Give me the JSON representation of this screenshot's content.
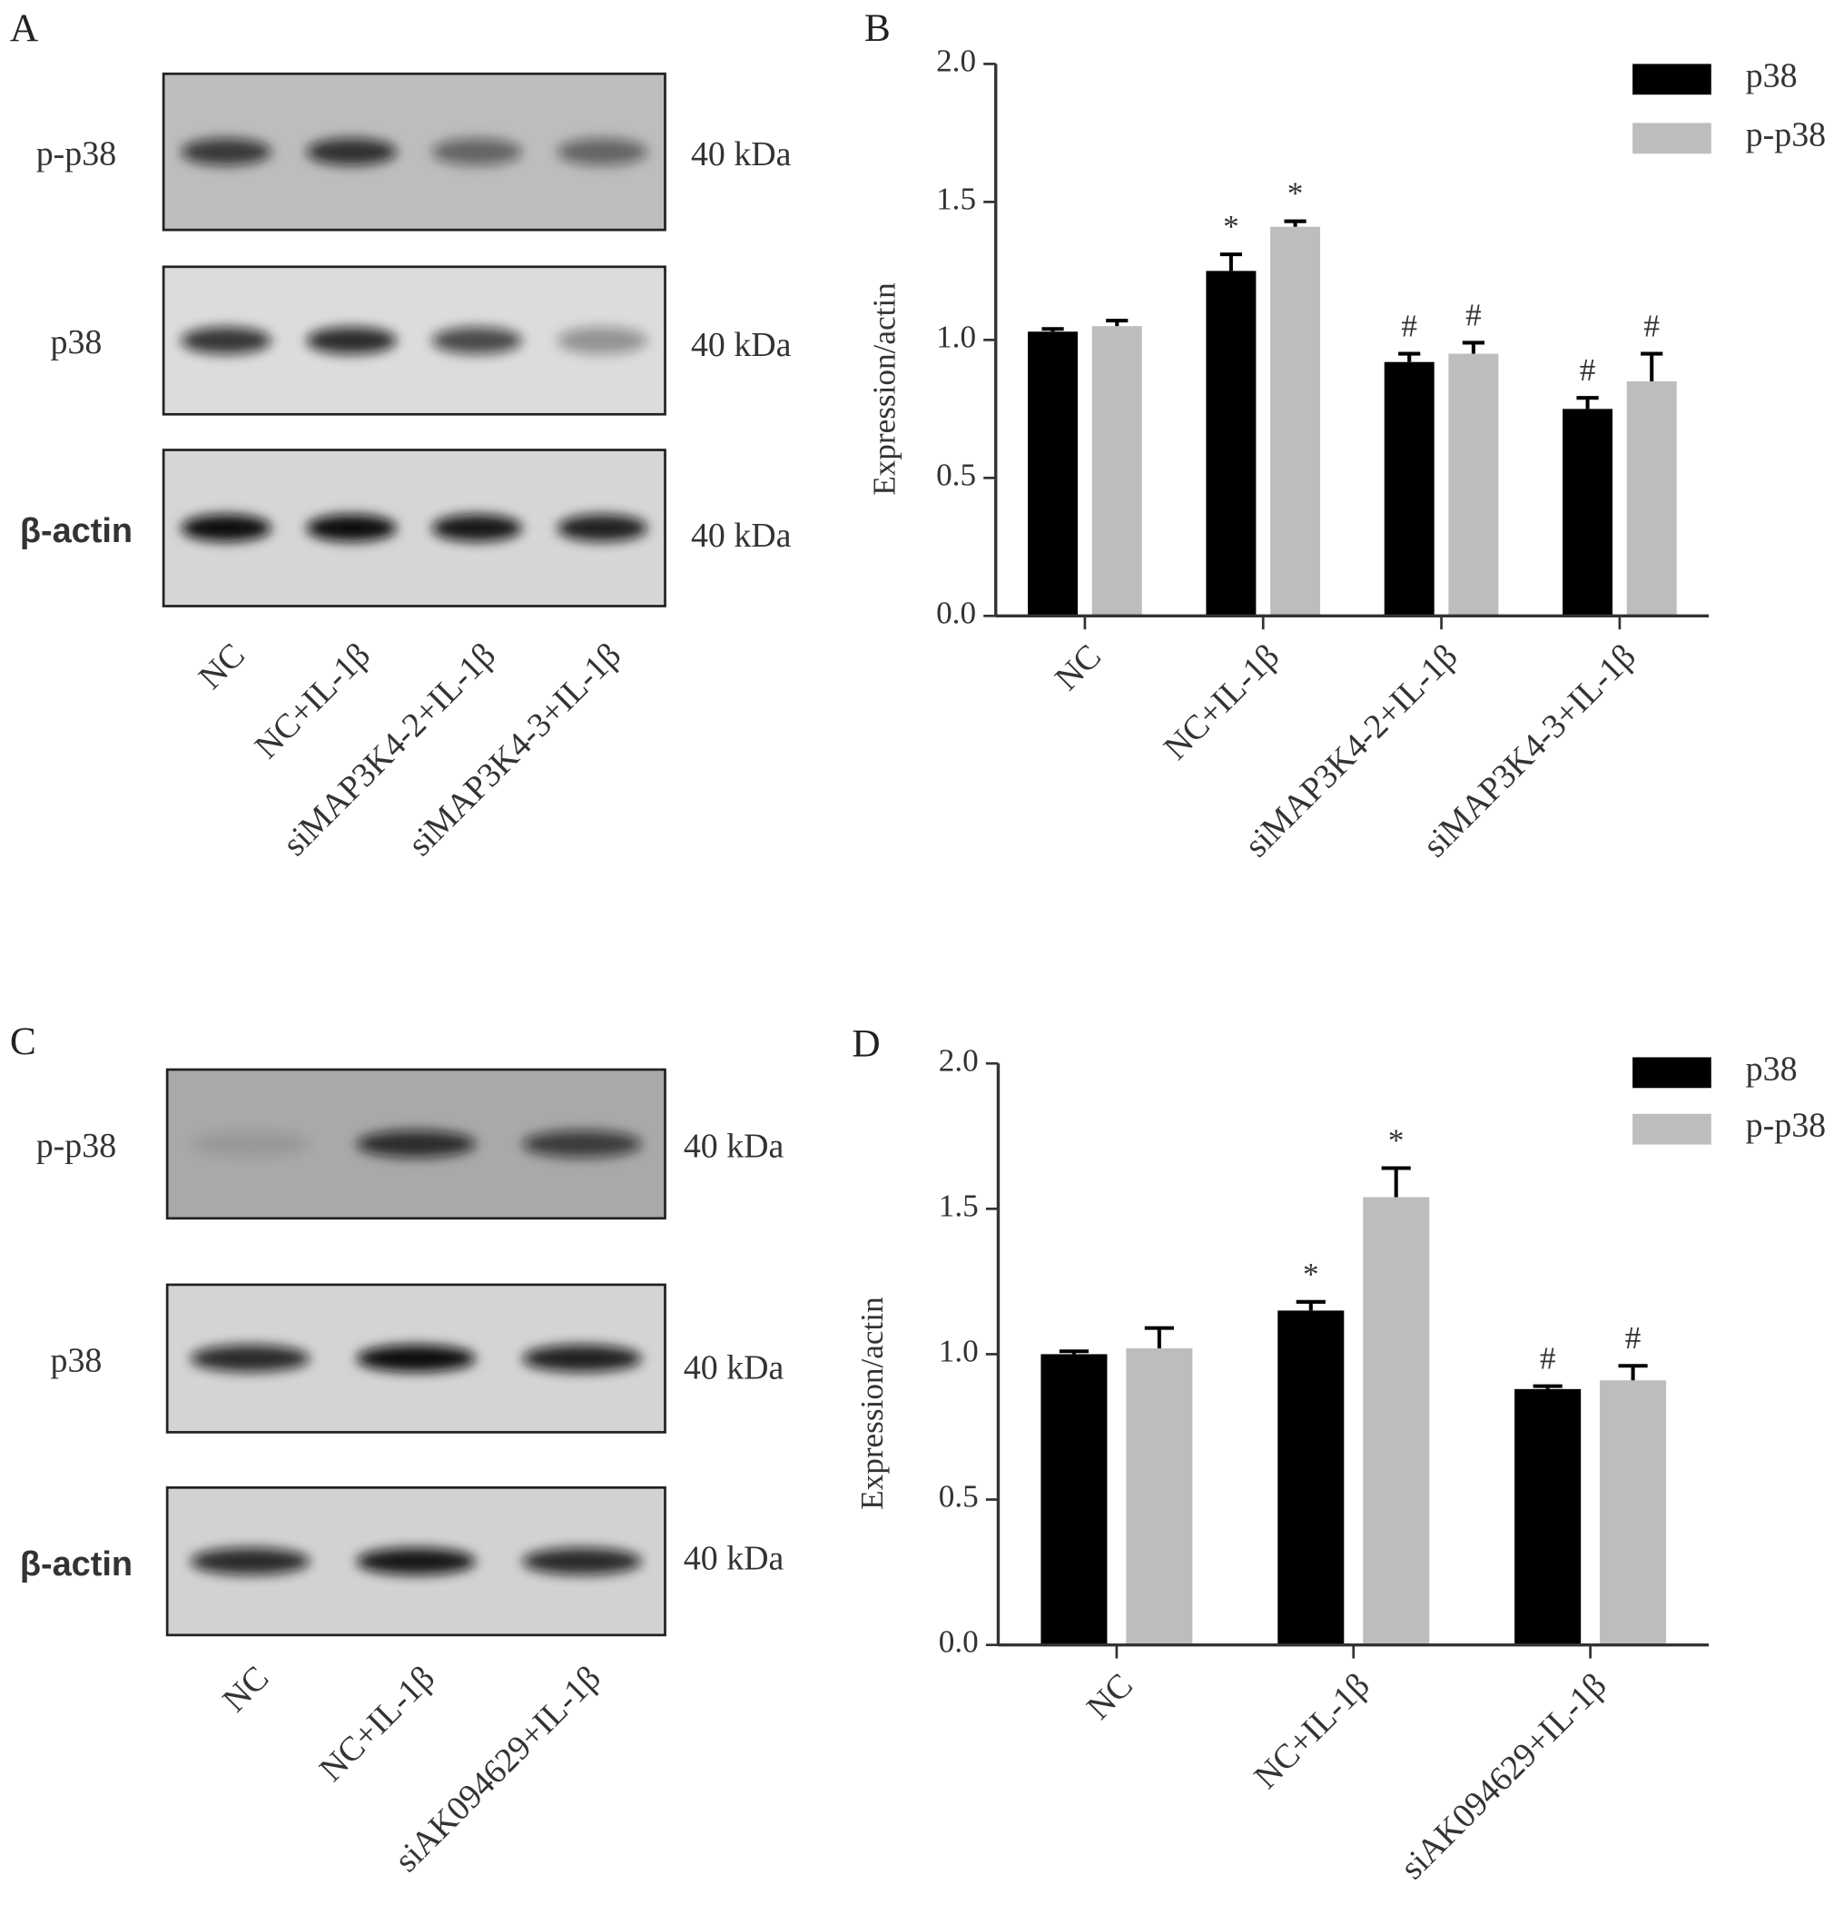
{
  "blots": [
    {
      "panel": "A",
      "rows": [
        {
          "label": "p-p38",
          "size": "40 kDa"
        },
        {
          "label": "p38",
          "size": "40 kDa"
        },
        {
          "label": "β-actin",
          "size": "40 kDa"
        }
      ],
      "lanes": [
        "NC",
        "NC+IL-1β",
        "siMAP3K4-2+IL-1β",
        "siMAP3K4-3+IL-1β"
      ]
    },
    {
      "panel": "C",
      "rows": [
        {
          "label": "p-p38",
          "size": "40 kDa"
        },
        {
          "label": "p38",
          "size": "40 kDa"
        },
        {
          "label": "β-actin",
          "size": "40 kDa"
        }
      ],
      "lanes": [
        "NC",
        "NC+IL-1β",
        "siAK094629+IL-1β"
      ]
    }
  ],
  "chart_data": [
    {
      "type": "bar",
      "panel": "B",
      "ylabel": "Expression/actin",
      "categories": [
        "NC",
        "NC+IL-1β",
        "siMAP3K4-2+IL-1β",
        "siMAP3K4-3+IL-1β"
      ],
      "series": [
        {
          "name": "p38",
          "color": "#000000",
          "values": [
            1.03,
            1.25,
            0.92,
            0.75
          ],
          "errors": [
            0.01,
            0.06,
            0.03,
            0.04
          ],
          "annotations": [
            null,
            "*",
            "#",
            "#"
          ]
        },
        {
          "name": "p-p38",
          "color": "#bdbdbd",
          "values": [
            1.05,
            1.41,
            0.95,
            0.85
          ],
          "errors": [
            0.02,
            0.02,
            0.04,
            0.1
          ],
          "annotations": [
            null,
            "*",
            "#",
            "#"
          ]
        }
      ],
      "ylim": [
        0,
        2
      ],
      "yticks": [
        {
          "value": 0,
          "label": "0.0"
        },
        0.5,
        {
          "value": 1,
          "label": "1.0"
        },
        1.5,
        {
          "value": 2,
          "label": "2.0"
        }
      ],
      "legend": "top-right"
    },
    {
      "type": "bar",
      "panel": "D",
      "ylabel": "Expression/actin",
      "categories": [
        "NC",
        "NC+IL-1β",
        "siAK094629+IL-1β"
      ],
      "series": [
        {
          "name": "p38",
          "color": "#000000",
          "values": [
            1.0,
            1.15,
            0.88
          ],
          "errors": [
            0.01,
            0.03,
            0.01
          ],
          "annotations": [
            null,
            "*",
            "#"
          ]
        },
        {
          "name": "p-p38",
          "color": "#bdbdbd",
          "values": [
            1.02,
            1.54,
            0.91
          ],
          "errors": [
            0.07,
            0.1,
            0.05
          ],
          "annotations": [
            null,
            "*",
            "#"
          ]
        }
      ],
      "ylim": [
        0,
        2
      ],
      "yticks": [
        {
          "value": 0,
          "label": "0.0"
        },
        0.5,
        {
          "value": 1,
          "label": "1.0"
        },
        1.5,
        {
          "value": 2,
          "label": "2.0"
        }
      ],
      "legend": "top-right"
    }
  ]
}
